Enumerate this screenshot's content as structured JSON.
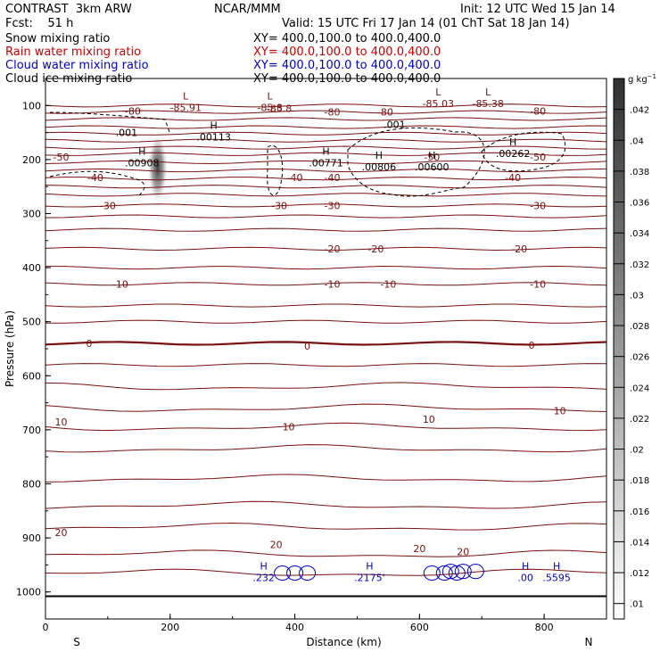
{
  "header": {
    "model": "CONTRAST  3km ARW",
    "org": "NCAR/MMM",
    "init": "Init: 12 UTC Wed 15 Jan 14",
    "fcst": "Fcst:    51 h",
    "valid": "Valid: 15 UTC Fri 17 Jan 14 (01 ChT Sat 18 Jan 14)"
  },
  "legend": [
    {
      "label": "Snow mixing ratio",
      "xy": "XY= 400.0,100.0 to 400.0,400.0",
      "color": "#000000"
    },
    {
      "label": "Rain water mixing ratio",
      "xy": "XY= 400.0,100.0 to 400.0,400.0",
      "color": "#cc0000"
    },
    {
      "label": "Cloud water mixing ratio",
      "xy": "XY= 400.0,100.0 to 400.0,400.0",
      "color": "#0000cc"
    },
    {
      "label": "Cloud ice mixing ratio",
      "xy": "XY= 400.0,100.0 to 400.0,400.0",
      "color": "#000000"
    }
  ],
  "chart_data": {
    "type": "heatmap",
    "xlabel": "Distance (km)",
    "ylabel": "Pressure (hPa)",
    "xlim": [
      0,
      900
    ],
    "ylim": [
      1050,
      50
    ],
    "x_ticks": [
      0,
      200,
      400,
      600,
      800
    ],
    "y_ticks": [
      100,
      200,
      300,
      400,
      500,
      600,
      700,
      800,
      900,
      1000
    ],
    "x_end_labels": {
      "left": "S",
      "right": "N"
    },
    "colorbar": {
      "unit": "g kg",
      "unit_exp": "−1",
      "ticks": [
        ".01",
        ".012",
        ".014",
        ".016",
        ".018",
        ".02",
        ".022",
        ".024",
        ".026",
        ".028",
        ".03",
        ".032",
        ".034",
        ".036",
        ".038",
        ".04",
        ".042"
      ]
    },
    "snow_shading": {
      "x": 180,
      "p_top": 160,
      "p_bottom": 285,
      "max_value": 0.045
    },
    "temperature_contours": {
      "color": "#7a1010",
      "levels": [
        -80,
        -50,
        -40,
        -30,
        -20,
        -10,
        0,
        10,
        20
      ],
      "labels": [
        {
          "text": "-80",
          "x": 140,
          "p": 110
        },
        {
          "text": "-85.8",
          "x": 375,
          "p": 105
        },
        {
          "text": "-80",
          "x": 460,
          "p": 112
        },
        {
          "text": "-80",
          "x": 545,
          "p": 112
        },
        {
          "text": "-80",
          "x": 790,
          "p": 110
        },
        {
          "text": "-50",
          "x": 25,
          "p": 195
        },
        {
          "text": "-40",
          "x": 80,
          "p": 233
        },
        {
          "text": "-40",
          "x": 400,
          "p": 233
        },
        {
          "text": "-40",
          "x": 460,
          "p": 233
        },
        {
          "text": "-40",
          "x": 750,
          "p": 233
        },
        {
          "text": "-50",
          "x": 620,
          "p": 195
        },
        {
          "text": "-50",
          "x": 790,
          "p": 195
        },
        {
          "text": "-30",
          "x": 100,
          "p": 285
        },
        {
          "text": "-30",
          "x": 375,
          "p": 285
        },
        {
          "text": "-30",
          "x": 460,
          "p": 285
        },
        {
          "text": "-30",
          "x": 790,
          "p": 285
        },
        {
          "text": "-20",
          "x": 460,
          "p": 365
        },
        {
          "text": "-20",
          "x": 530,
          "p": 365
        },
        {
          "text": "-20",
          "x": 760,
          "p": 365
        },
        {
          "text": "-10",
          "x": 120,
          "p": 430
        },
        {
          "text": "-10",
          "x": 460,
          "p": 430
        },
        {
          "text": "-10",
          "x": 550,
          "p": 430
        },
        {
          "text": "-10",
          "x": 790,
          "p": 430
        },
        {
          "text": "0",
          "x": 70,
          "p": 540
        },
        {
          "text": "0",
          "x": 420,
          "p": 545
        },
        {
          "text": "0",
          "x": 780,
          "p": 543
        },
        {
          "text": "10",
          "x": 25,
          "p": 685
        },
        {
          "text": "10",
          "x": 390,
          "p": 694
        },
        {
          "text": "10",
          "x": 615,
          "p": 680
        },
        {
          "text": "10",
          "x": 825,
          "p": 665
        },
        {
          "text": "20",
          "x": 25,
          "p": 890
        },
        {
          "text": "20",
          "x": 370,
          "p": 912
        },
        {
          "text": "20",
          "x": 600,
          "p": 920
        },
        {
          "text": "20",
          "x": 670,
          "p": 925
        }
      ]
    },
    "extrema": [
      {
        "type": "L",
        "value": "-85.91",
        "x": 225,
        "p": 95,
        "color": "#7a1010"
      },
      {
        "type": "L",
        "value": "-85.8",
        "x": 360,
        "p": 95,
        "color": "#7a1010"
      },
      {
        "type": "L",
        "value": "-85.03",
        "x": 630,
        "p": 88,
        "color": "#7a1010"
      },
      {
        "type": "L",
        "value": "-85.38",
        "x": 710,
        "p": 88,
        "color": "#7a1010"
      },
      {
        "type": "H",
        "value": ".00113",
        "x": 270,
        "p": 150,
        "color": "#000000"
      },
      {
        "type": "H",
        "value": ".00908",
        "x": 155,
        "p": 198,
        "color": "#000000"
      },
      {
        "type": "H",
        "value": ".00771",
        "x": 450,
        "p": 198,
        "color": "#000000"
      },
      {
        "type": "H",
        "value": ".00806",
        "x": 535,
        "p": 205,
        "color": "#000000"
      },
      {
        "type": "H",
        "value": ".00600",
        "x": 620,
        "p": 205,
        "color": "#000000"
      },
      {
        "type": "H",
        "value": ".00262",
        "x": 750,
        "p": 180,
        "color": "#000000"
      },
      {
        "type": "H",
        "value": ".232",
        "x": 350,
        "p": 965,
        "color": "#0000cc"
      },
      {
        "type": "H",
        "value": ".2175'",
        "x": 520,
        "p": 965,
        "color": "#0000cc"
      },
      {
        "type": "H",
        "value": ".00",
        "x": 770,
        "p": 965,
        "color": "#0000cc"
      },
      {
        "type": "H",
        "value": ".5595",
        "x": 820,
        "p": 965,
        "color": "#0000cc"
      }
    ],
    "cloud_ice_labels": [
      {
        "text": ".001",
        "x": 130,
        "p": 150
      },
      {
        "text": ".001",
        "x": 560,
        "p": 135
      }
    ]
  }
}
